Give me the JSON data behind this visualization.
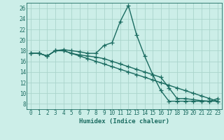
{
  "xlabel": "Humidex (Indice chaleur)",
  "bg_color": "#cceee8",
  "grid_color": "#aad4cc",
  "line_color": "#1a6b60",
  "xlim": [
    -0.5,
    23.5
  ],
  "ylim": [
    7,
    27
  ],
  "xticks": [
    0,
    1,
    2,
    3,
    4,
    5,
    6,
    7,
    8,
    9,
    10,
    11,
    12,
    13,
    14,
    15,
    16,
    17,
    18,
    19,
    20,
    21,
    22,
    23
  ],
  "yticks": [
    8,
    10,
    12,
    14,
    16,
    18,
    20,
    22,
    24,
    26
  ],
  "series1_x": [
    0,
    1,
    2,
    3,
    4,
    5,
    6,
    7,
    8,
    9,
    10,
    11,
    12,
    13,
    14,
    15,
    16,
    17,
    18,
    19,
    20,
    21,
    22,
    23
  ],
  "series1_y": [
    17.5,
    17.5,
    17.0,
    18.0,
    18.2,
    18.0,
    17.8,
    17.5,
    17.5,
    19.0,
    19.5,
    23.5,
    26.5,
    21.0,
    17.0,
    13.5,
    10.5,
    8.5,
    8.5,
    8.5,
    8.5,
    8.5,
    8.5,
    9.0
  ],
  "series2_x": [
    0,
    1,
    2,
    3,
    4,
    5,
    6,
    7,
    8,
    9,
    10,
    11,
    12,
    13,
    14,
    15,
    16,
    17,
    18,
    19,
    20,
    21,
    22,
    23
  ],
  "series2_y": [
    17.5,
    17.5,
    17.0,
    18.0,
    18.0,
    17.5,
    17.0,
    16.5,
    16.0,
    15.5,
    15.0,
    14.5,
    14.0,
    13.5,
    13.0,
    12.5,
    12.0,
    11.5,
    11.0,
    10.5,
    10.0,
    9.5,
    9.0,
    8.5
  ],
  "series3_x": [
    0,
    1,
    2,
    3,
    4,
    5,
    6,
    7,
    8,
    9,
    10,
    11,
    12,
    13,
    14,
    15,
    16,
    17,
    18,
    19,
    20,
    21,
    22,
    23
  ],
  "series3_y": [
    17.5,
    17.5,
    17.0,
    18.0,
    18.0,
    17.5,
    17.2,
    17.0,
    16.8,
    16.5,
    16.0,
    15.5,
    15.0,
    14.5,
    14.0,
    13.5,
    13.0,
    11.0,
    9.0,
    9.0,
    8.8,
    8.6,
    8.5,
    8.5
  ],
  "tick_fontsize": 5.5,
  "xlabel_fontsize": 6.5,
  "marker_size": 4,
  "linewidth": 1.0
}
